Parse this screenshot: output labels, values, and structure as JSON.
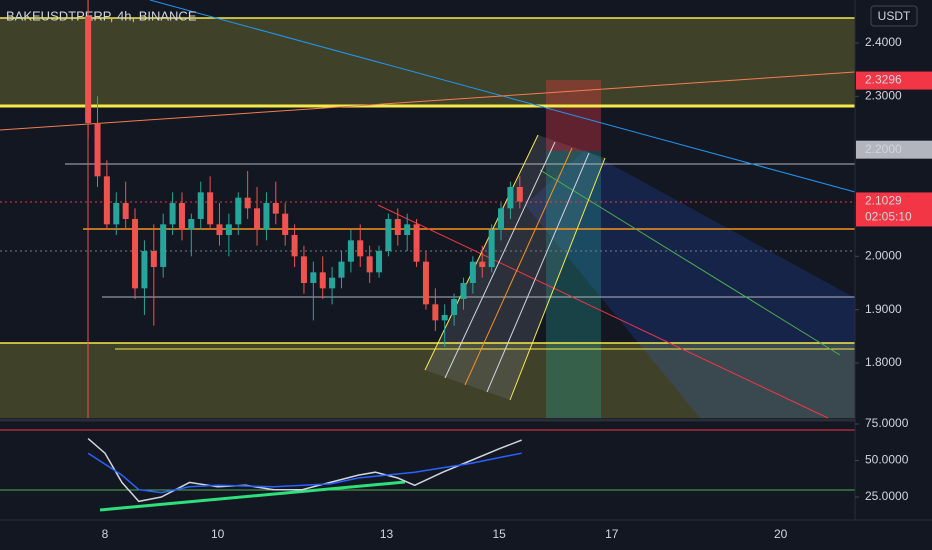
{
  "chart_data": [
    {
      "type": "candlestick",
      "title": "BAKEUSDTPERP, 4h, BINANCE",
      "unit": "USDT",
      "up_color": "#26a69a",
      "down_color": "#ef5350",
      "x": [
        7.7,
        7.867,
        8.033,
        8.2,
        8.367,
        8.533,
        8.7,
        8.867,
        9.033,
        9.2,
        9.367,
        9.533,
        9.7,
        9.867,
        10.033,
        10.2,
        10.367,
        10.533,
        10.7,
        10.867,
        11.033,
        11.2,
        11.367,
        11.533,
        11.7,
        11.867,
        12.033,
        12.2,
        12.367,
        12.533,
        12.7,
        12.867,
        13.033,
        13.2,
        13.367,
        13.533,
        13.7,
        13.867,
        14.033,
        14.2,
        14.367,
        14.533,
        14.7,
        14.867,
        15.033,
        15.2,
        15.367
      ],
      "open": [
        2.45,
        2.25,
        2.15,
        2.06,
        2.1,
        2.07,
        1.94,
        2.01,
        1.98,
        2.06,
        2.1,
        2.05,
        2.07,
        2.12,
        2.06,
        2.04,
        2.06,
        2.11,
        2.09,
        2.05,
        2.1,
        2.08,
        2.04,
        2.0,
        1.95,
        1.97,
        1.94,
        1.96,
        1.99,
        2.03,
        2.0,
        1.97,
        2.01,
        2.07,
        2.04,
        2.06,
        1.99,
        1.91,
        1.88,
        1.89,
        1.92,
        1.95,
        1.99,
        1.98,
        2.05,
        2.09,
        2.13
      ],
      "high": [
        2.48,
        2.3,
        2.18,
        2.12,
        2.14,
        2.09,
        2.03,
        2.06,
        2.08,
        2.12,
        2.12,
        2.08,
        2.14,
        2.15,
        2.1,
        2.08,
        2.12,
        2.16,
        2.13,
        2.12,
        2.14,
        2.1,
        2.06,
        2.02,
        1.99,
        2.0,
        1.98,
        2.01,
        2.05,
        2.06,
        2.02,
        2.02,
        2.08,
        2.09,
        2.08,
        2.07,
        2.01,
        1.94,
        1.91,
        1.93,
        1.96,
        2.0,
        2.02,
        2.06,
        2.1,
        2.14,
        2.15
      ],
      "low": [
        2.22,
        2.13,
        2.05,
        2.04,
        2.05,
        1.92,
        1.89,
        1.87,
        1.96,
        2.04,
        2.03,
        2.0,
        2.05,
        2.05,
        2.02,
        2.0,
        2.04,
        2.07,
        2.02,
        2.03,
        2.06,
        2.02,
        1.98,
        1.93,
        1.88,
        1.92,
        1.91,
        1.94,
        1.97,
        1.98,
        1.95,
        1.96,
        2.0,
        2.02,
        2.01,
        1.98,
        1.9,
        1.86,
        1.83,
        1.87,
        1.9,
        1.93,
        1.96,
        1.97,
        2.03,
        2.07,
        2.09
      ],
      "close": [
        2.25,
        2.15,
        2.06,
        2.1,
        2.07,
        1.94,
        2.01,
        1.98,
        2.06,
        2.1,
        2.05,
        2.07,
        2.12,
        2.06,
        2.04,
        2.06,
        2.11,
        2.09,
        2.05,
        2.1,
        2.08,
        2.04,
        2.0,
        1.95,
        1.97,
        1.94,
        1.96,
        1.99,
        2.03,
        2.0,
        1.97,
        2.01,
        2.07,
        2.04,
        2.06,
        1.99,
        1.91,
        1.88,
        1.89,
        1.92,
        1.95,
        1.99,
        1.98,
        2.05,
        2.09,
        2.13,
        2.1029
      ],
      "xlim": [
        6.135,
        21.32
      ],
      "xticks": [
        8,
        10,
        13,
        15,
        17,
        20
      ],
      "ylim": [
        1.6969,
        2.4806
      ],
      "yticks": [
        {
          "value": 2.4,
          "label": "2.4000"
        },
        {
          "value": 2.3,
          "label": "2.3000"
        },
        {
          "value": 2.0,
          "label": "2.0000"
        },
        {
          "value": 1.9,
          "label": "1.9000"
        },
        {
          "value": 1.8,
          "label": "1.8000"
        }
      ],
      "price_labels": [
        {
          "value": 2.3296,
          "label": "2.3296",
          "color": "#f23645"
        },
        {
          "value": 2.2,
          "label": "2.2000",
          "color": "#b2b5be"
        },
        {
          "value": 2.1029,
          "label": "2.1029",
          "color": "#f23645"
        }
      ],
      "countdown": "02:05:10"
    },
    {
      "type": "line",
      "series": [
        {
          "color": "#d1d4dc",
          "x": [
            7.7,
            8.0,
            8.3,
            8.6,
            9.0,
            9.5,
            10.0,
            10.5,
            11.0,
            11.5,
            12.0,
            12.5,
            12.8,
            13.2,
            13.5,
            14.0,
            14.5,
            15.0,
            15.4
          ],
          "values": [
            65,
            55,
            35,
            22,
            25,
            35,
            32,
            33,
            30,
            30,
            35,
            40,
            42,
            38,
            33,
            42,
            50,
            58,
            64
          ]
        },
        {
          "color": "#2962ff",
          "x": [
            7.7,
            8.3,
            8.6,
            9.0,
            9.5,
            10.0,
            11.0,
            12.0,
            12.5,
            13.0,
            13.5,
            14.0,
            14.5,
            15.0,
            15.4
          ],
          "values": [
            55,
            40,
            30,
            28,
            32,
            33,
            32,
            34,
            38,
            40,
            42,
            45,
            48,
            52,
            55
          ]
        }
      ],
      "ylim": [
        9.25,
        75
      ],
      "yticks": [
        {
          "value": 75,
          "label": "75.0000"
        },
        {
          "value": 50,
          "label": "50.0000"
        },
        {
          "value": 25,
          "label": "25.0000"
        }
      ]
    }
  ]
}
